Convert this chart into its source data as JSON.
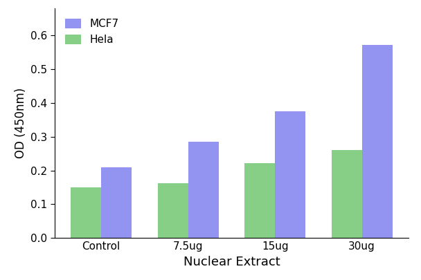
{
  "categories": [
    "Control",
    "7.5ug",
    "15ug",
    "30ug"
  ],
  "mcf7_values": [
    0.21,
    0.285,
    0.375,
    0.572
  ],
  "hela_values": [
    0.15,
    0.163,
    0.222,
    0.26
  ],
  "mcf7_color": "#7b7bef",
  "hela_color": "#6dc56d",
  "xlabel": "Nuclear Extract",
  "ylabel": "OD (450nm)",
  "ylim": [
    0.0,
    0.68
  ],
  "yticks": [
    0.0,
    0.1,
    0.2,
    0.3,
    0.4,
    0.5,
    0.6
  ],
  "legend_labels": [
    "MCF7",
    "Hela"
  ],
  "bar_width": 0.35,
  "background_color": "#ffffff",
  "xlabel_fontsize": 13,
  "ylabel_fontsize": 12,
  "tick_fontsize": 11,
  "legend_fontsize": 11
}
